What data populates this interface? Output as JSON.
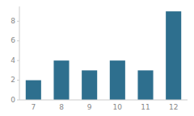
{
  "chart_data": {
    "type": "bar",
    "categories": [
      "7",
      "8",
      "9",
      "10",
      "11",
      "12"
    ],
    "values": [
      2,
      4,
      3,
      4,
      3,
      9
    ],
    "color": "#2e6f8e",
    "ylim": [
      0,
      9.5
    ],
    "yticks": [
      0,
      2,
      4,
      6,
      8
    ]
  }
}
